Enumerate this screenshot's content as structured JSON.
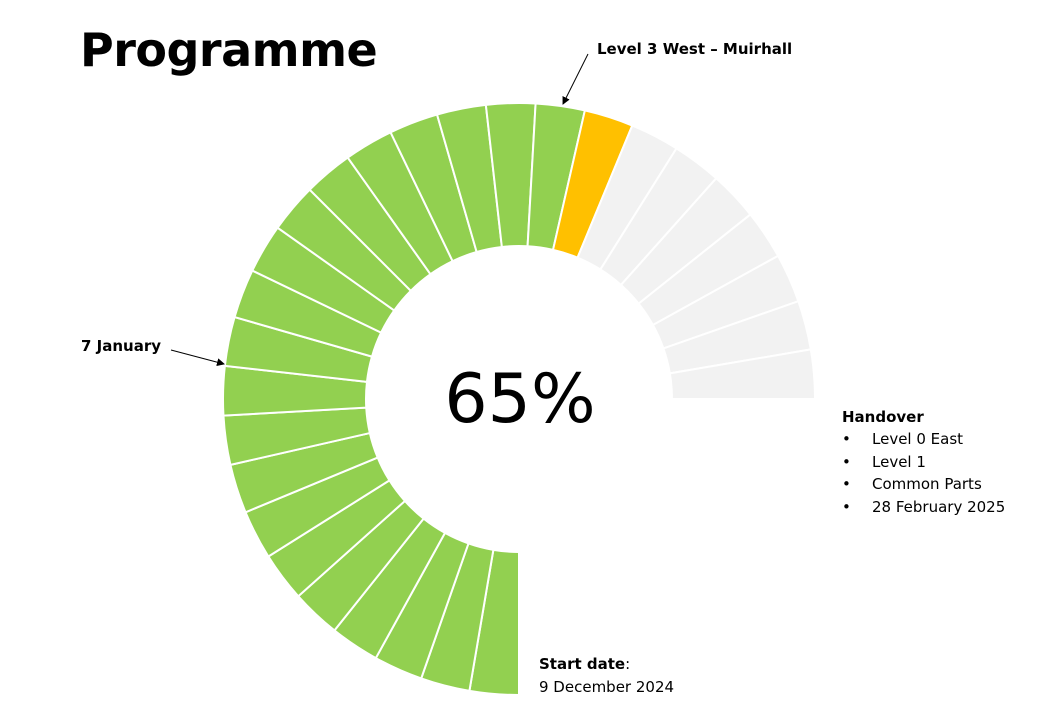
{
  "title": "Programme",
  "center_value": "65%",
  "progress": {
    "completed_segments": 20,
    "current_segments": 1,
    "total_segments": 28,
    "percent": 65
  },
  "callouts": {
    "current_milestone": "Level 3 West – Muirhall",
    "january_marker": "7 January"
  },
  "handover": {
    "heading": "Handover",
    "items": [
      {
        "bullet": "•",
        "text": "Level 0 East"
      },
      {
        "bullet": "•",
        "text": "Level 1"
      },
      {
        "bullet": "•",
        "text": "Common Parts"
      },
      {
        "bullet": "•",
        "text": "28 February 2025"
      }
    ]
  },
  "start": {
    "label": "Start date",
    "colon": ":",
    "date": "9 December 2024"
  },
  "colors": {
    "completed": "#92D050",
    "current": "#FFC000",
    "remaining": "#F2F2F2",
    "divider": "#FFFFFF"
  }
}
